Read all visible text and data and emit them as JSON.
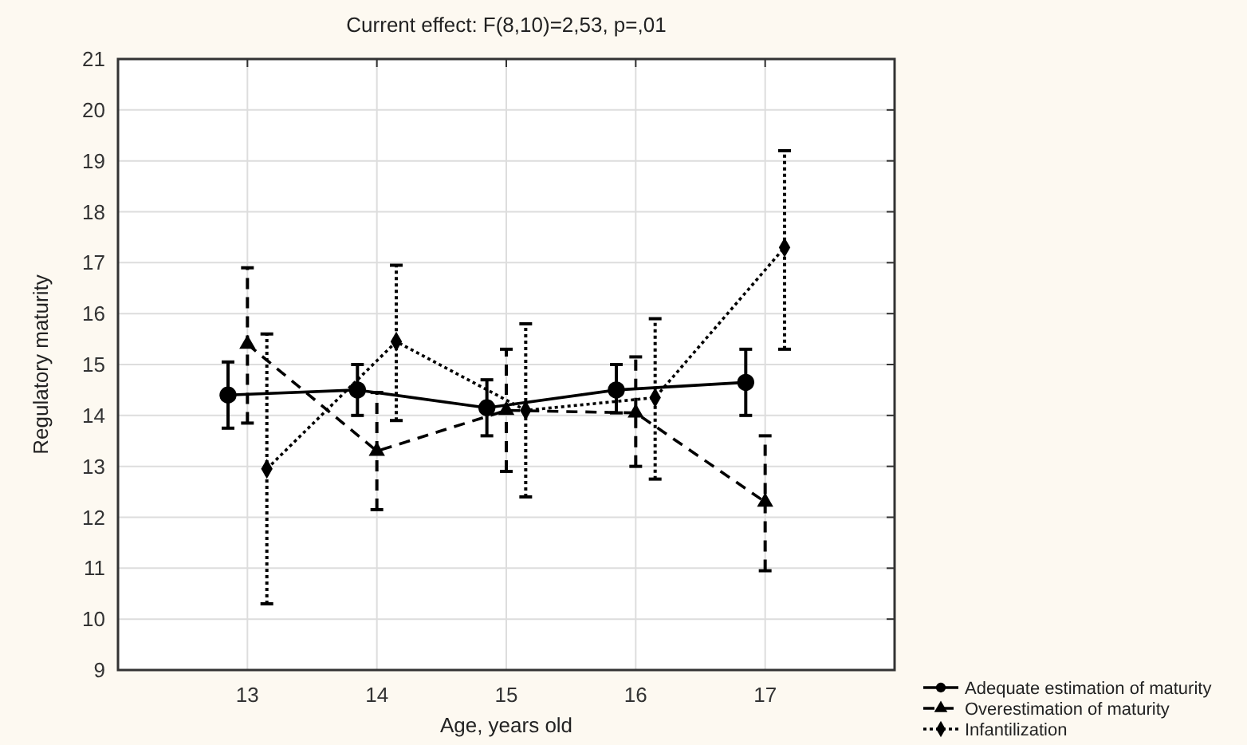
{
  "chart_data": {
    "type": "line",
    "title": "Current effect: F(8,10)=2,53, p=,01",
    "xlabel": "Age, years old",
    "ylabel": "Regulatory maturity",
    "xlim": [
      12,
      18
    ],
    "xticks": [
      13,
      14,
      15,
      16,
      17
    ],
    "ylim": [
      9,
      21
    ],
    "yticks": [
      9,
      10,
      11,
      12,
      13,
      14,
      15,
      16,
      17,
      18,
      19,
      20,
      21
    ],
    "grid": true,
    "legend": "bottom right",
    "series": [
      {
        "name": "Adequate estimation of maturity",
        "color": "#000000",
        "marker": "circle",
        "line_style": "solid",
        "x": [
          12.85,
          13.85,
          14.85,
          15.85,
          16.85
        ],
        "values": [
          14.4,
          14.5,
          14.15,
          14.5,
          14.65
        ],
        "errors": [
          [
            13.75,
            15.05
          ],
          [
            14.0,
            15.0
          ],
          [
            13.6,
            14.7
          ],
          [
            14.05,
            15.0
          ],
          [
            14.0,
            15.3
          ]
        ]
      },
      {
        "name": "Overestimation of maturity",
        "color": "#000000",
        "marker": "triangle",
        "line_style": "dashed",
        "x": [
          13,
          14,
          15,
          16,
          17
        ],
        "values": [
          15.4,
          13.3,
          14.1,
          14.05,
          12.3
        ],
        "errors": [
          [
            13.85,
            16.9
          ],
          [
            12.15,
            14.45
          ],
          [
            12.9,
            15.3
          ],
          [
            13.0,
            15.15
          ],
          [
            10.95,
            13.6
          ]
        ]
      },
      {
        "name": "Infantilization",
        "color": "#000000",
        "marker": "diamond",
        "line_style": "dotted",
        "x": [
          13.15,
          14.15,
          15.15,
          16.15,
          17.15
        ],
        "values": [
          12.95,
          15.45,
          14.1,
          14.35,
          17.3
        ],
        "errors": [
          [
            10.3,
            15.6
          ],
          [
            13.9,
            16.95
          ],
          [
            12.4,
            15.8
          ],
          [
            12.75,
            15.9
          ],
          [
            15.3,
            19.2
          ]
        ]
      }
    ]
  }
}
